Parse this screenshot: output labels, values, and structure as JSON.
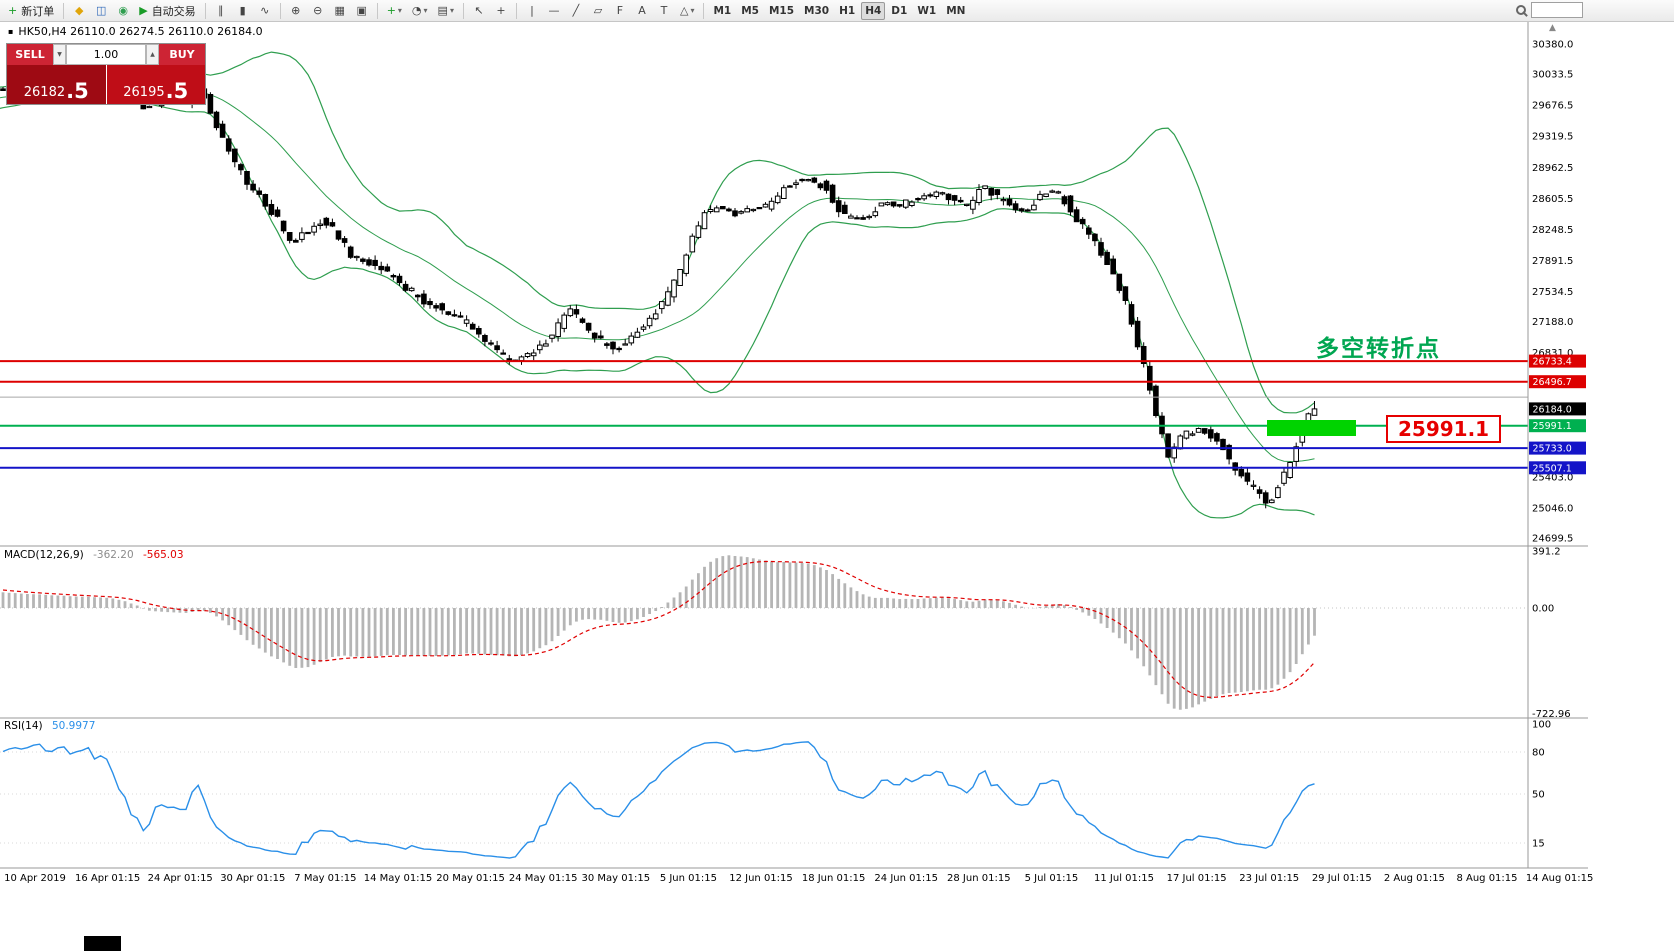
{
  "toolbar": {
    "dropdown_glyph": "▾",
    "search_placeholder": "",
    "groups": [
      {
        "items": [
          {
            "name": "new-order-button",
            "label": "新订单",
            "glyph": "+",
            "glyph_color": "#1a9c28"
          }
        ]
      },
      {
        "items": [
          {
            "name": "metaeditor-button",
            "glyph": "◆",
            "glyph_color": "#e0a50a"
          },
          {
            "name": "new-chart-button",
            "glyph": "◫",
            "glyph_color": "#2c66b8"
          },
          {
            "name": "profiles-button",
            "glyph": "◉",
            "glyph_color": "#2f9e4f"
          },
          {
            "name": "autotrading-button",
            "label": "自动交易",
            "glyph": "▶",
            "glyph_color": "#1a9c28"
          }
        ]
      },
      {
        "items": [
          {
            "name": "bar-chart-button",
            "glyph": "∥"
          },
          {
            "name": "candlestick-chart-button",
            "glyph": "▮"
          },
          {
            "name": "line-chart-button",
            "glyph": "∿"
          }
        ]
      },
      {
        "items": [
          {
            "name": "zoom-in-button",
            "glyph": "⊕"
          },
          {
            "name": "zoom-out-button",
            "glyph": "⊖"
          },
          {
            "name": "grid-button",
            "glyph": "▦"
          },
          {
            "name": "tile-windows-button",
            "glyph": "▣"
          }
        ]
      },
      {
        "items": [
          {
            "name": "indicators-button",
            "glyph": "+",
            "glyph_color": "#1a9c28",
            "dropdown": true
          },
          {
            "name": "periods-button",
            "glyph": "◔",
            "dropdown": true
          },
          {
            "name": "templates-button",
            "glyph": "▤",
            "dropdown": true
          }
        ]
      },
      {
        "items": [
          {
            "name": "cursor-button",
            "glyph": "↖"
          },
          {
            "name": "crosshair-button",
            "glyph": "+"
          }
        ]
      },
      {
        "items": [
          {
            "name": "vertical-line-button",
            "glyph": "|"
          },
          {
            "name": "horizontal-line-button",
            "glyph": "—"
          },
          {
            "name": "trendline-button",
            "glyph": "╱"
          },
          {
            "name": "equidistant-channel-button",
            "glyph": "▱"
          },
          {
            "name": "fibonacci-button",
            "glyph": "F"
          },
          {
            "name": "text-button",
            "glyph": "A"
          },
          {
            "name": "label-button",
            "glyph": "T"
          },
          {
            "name": "shapes-button",
            "glyph": "△",
            "dropdown": true
          }
        ]
      },
      {
        "items": [
          {
            "name": "timeframe-m1",
            "label": "M1"
          },
          {
            "name": "timeframe-m5",
            "label": "M5"
          },
          {
            "name": "timeframe-m15",
            "label": "M15"
          },
          {
            "name": "timeframe-m30",
            "label": "M30"
          },
          {
            "name": "timeframe-h1",
            "label": "H1"
          },
          {
            "name": "timeframe-h4",
            "label": "H4",
            "active": true
          },
          {
            "name": "timeframe-d1",
            "label": "D1"
          },
          {
            "name": "timeframe-w1",
            "label": "W1"
          },
          {
            "name": "timeframe-mn",
            "label": "MN"
          }
        ]
      }
    ]
  },
  "chart": {
    "ohlc_header": "HK50,H4 26110.0 26274.5 26110.0 26184.0",
    "annotation": "多空转折点",
    "annotation_color": "#00a651",
    "price_callout": "25991.1",
    "icons": {
      "chart_header": "▪",
      "scroll_up": "▲",
      "spinner_down": "▼",
      "spinner_up": "▲"
    },
    "one_click": {
      "sell_label": "SELL",
      "buy_label": "BUY",
      "volume": "1.00",
      "sell_price_main": "26182",
      "sell_price_big": ".5",
      "buy_price_main": "26195",
      "buy_price_big": ".5"
    },
    "current_price_tag": {
      "label": "26184.0",
      "bg": "#000000"
    },
    "hlines": [
      {
        "price": 26733.4,
        "color": "#dd0000",
        "width": 2,
        "label": "26733.4",
        "label_bg": "#dd0000"
      },
      {
        "price": 26496.7,
        "color": "#dd0000",
        "width": 2,
        "label": "26496.7",
        "label_bg": "#dd0000"
      },
      {
        "price": 26320.0,
        "color": "#a8a8a8",
        "width": 1,
        "label": ""
      },
      {
        "price": 25991.1,
        "color": "#00b050",
        "width": 2,
        "label": "25991.1",
        "label_bg": "#00b050"
      },
      {
        "price": 25733.0,
        "color": "#1414c8",
        "width": 2,
        "label": "25733.0",
        "label_bg": "#1414c8"
      },
      {
        "price": 25507.1,
        "color": "#1414c8",
        "width": 2,
        "label": "25507.1",
        "label_bg": "#1414c8"
      }
    ],
    "y_axis_labels": [
      "30380.0",
      "30033.5",
      "29676.5",
      "29319.5",
      "28962.5",
      "28605.5",
      "28248.5",
      "27891.5",
      "27534.5",
      "27188.0",
      "26831.0",
      "25403.0",
      "25046.0",
      "24699.5"
    ],
    "colors": {
      "bollinger": "#2f9e4f",
      "bull": "#ffffff",
      "bear": "#000000",
      "macd_hist": "#b5b5b5",
      "macd_signal": "#e00000",
      "rsi_line": "#2a8fe8"
    }
  },
  "macd": {
    "name": "MACD(12,26,9)",
    "value_main": "-362.20",
    "value_signal": "-565.03",
    "axis_labels": [
      "391.2",
      "0.00",
      "-722.96"
    ]
  },
  "rsi": {
    "name": "RSI(14)",
    "value": "50.9977",
    "axis_labels": [
      "100",
      "80",
      "50",
      "15"
    ]
  },
  "time_axis": [
    "10 Apr 2019",
    "16 Apr 01:15",
    "24 Apr 01:15",
    "30 Apr 01:15",
    "7 May 01:15",
    "14 May 01:15",
    "20 May 01:15",
    "24 May 01:15",
    "30 May 01:15",
    "5 Jun 01:15",
    "12 Jun 01:15",
    "18 Jun 01:15",
    "24 Jun 01:15",
    "28 Jun 01:15",
    "5 Jul 01:15",
    "11 Jul 01:15",
    "17 Jul 01:15",
    "23 Jul 01:15",
    "29 Jul 01:15",
    "2 Aug 01:15",
    "8 Aug 01:15",
    "14 Aug 01:15"
  ],
  "chart_data": {
    "type": "candlestick",
    "symbol": "HK50",
    "timeframe": "H4",
    "bid": "26182.5",
    "ask": "26195.5",
    "last_bar": {
      "open": 26110.0,
      "high": 26274.5,
      "low": 26110.0,
      "close": 26184.0
    },
    "indicators": [
      {
        "name": "Bollinger Bands",
        "color": "#2f9e4f"
      },
      {
        "name": "MACD(12,26,9)",
        "main": -362.2,
        "signal": -565.03,
        "range": [
          -722.96,
          391.2
        ]
      },
      {
        "name": "RSI(14)",
        "value": 50.9977,
        "levels": [
          15,
          50,
          80
        ]
      }
    ],
    "price_path": [
      [
        -180,
        29480
      ],
      [
        -80,
        29720
      ],
      [
        20,
        29880
      ],
      [
        105,
        29985
      ],
      [
        128,
        29895
      ],
      [
        152,
        29635
      ],
      [
        168,
        29760
      ],
      [
        192,
        29720
      ],
      [
        208,
        29860
      ],
      [
        224,
        29410
      ],
      [
        240,
        29000
      ],
      [
        256,
        28760
      ],
      [
        270,
        28560
      ],
      [
        284,
        28360
      ],
      [
        298,
        28070
      ],
      [
        313,
        28220
      ],
      [
        328,
        28360
      ],
      [
        343,
        28210
      ],
      [
        358,
        27915
      ],
      [
        374,
        27860
      ],
      [
        390,
        27760
      ],
      [
        405,
        27655
      ],
      [
        425,
        27455
      ],
      [
        445,
        27355
      ],
      [
        460,
        27255
      ],
      [
        475,
        27155
      ],
      [
        490,
        26955
      ],
      [
        505,
        26855
      ],
      [
        518,
        26705
      ],
      [
        533,
        26815
      ],
      [
        548,
        26915
      ],
      [
        563,
        27115
      ],
      [
        575,
        27360
      ],
      [
        588,
        27160
      ],
      [
        603,
        27010
      ],
      [
        618,
        26860
      ],
      [
        633,
        26960
      ],
      [
        648,
        27110
      ],
      [
        663,
        27310
      ],
      [
        675,
        27515
      ],
      [
        688,
        27815
      ],
      [
        701,
        28215
      ],
      [
        713,
        28460
      ],
      [
        728,
        28510
      ],
      [
        743,
        28430
      ],
      [
        758,
        28490
      ],
      [
        773,
        28530
      ],
      [
        788,
        28690
      ],
      [
        803,
        28810
      ],
      [
        818,
        28830
      ],
      [
        833,
        28710
      ],
      [
        848,
        28430
      ],
      [
        861,
        28360
      ],
      [
        875,
        28410
      ],
      [
        889,
        28560
      ],
      [
        903,
        28510
      ],
      [
        918,
        28590
      ],
      [
        933,
        28630
      ],
      [
        948,
        28690
      ],
      [
        961,
        28560
      ],
      [
        975,
        28510
      ],
      [
        988,
        28760
      ],
      [
        1003,
        28610
      ],
      [
        1018,
        28510
      ],
      [
        1033,
        28460
      ],
      [
        1048,
        28660
      ],
      [
        1061,
        28690
      ],
      [
        1073,
        28560
      ],
      [
        1085,
        28310
      ],
      [
        1098,
        28190
      ],
      [
        1111,
        27910
      ],
      [
        1123,
        27660
      ],
      [
        1135,
        27310
      ],
      [
        1145,
        26860
      ],
      [
        1155,
        26460
      ],
      [
        1165,
        26010
      ],
      [
        1175,
        25610
      ],
      [
        1185,
        25860
      ],
      [
        1195,
        25910
      ],
      [
        1205,
        25960
      ],
      [
        1215,
        25890
      ],
      [
        1225,
        25810
      ],
      [
        1235,
        25610
      ],
      [
        1245,
        25460
      ],
      [
        1255,
        25310
      ],
      [
        1265,
        25260
      ],
      [
        1275,
        25060
      ],
      [
        1285,
        25310
      ],
      [
        1295,
        25560
      ],
      [
        1305,
        25860
      ],
      [
        1312,
        26130
      ],
      [
        1316,
        26184
      ]
    ]
  }
}
